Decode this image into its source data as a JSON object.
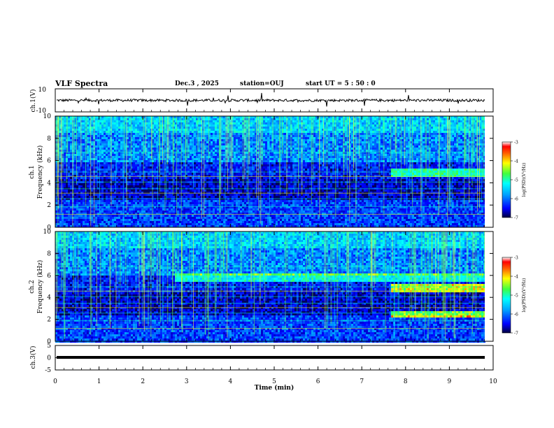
{
  "header": {
    "title": "VLF Spectra",
    "date": "Dec.3  , 2025",
    "station": "station=OUJ",
    "start_ut": "start  UT =  5 : 50 : 0"
  },
  "chart_data": [
    {
      "type": "line",
      "name": "ch1-waveform",
      "ylabel": "ch.1(V)",
      "ylim": [
        -10,
        10
      ],
      "yticks": [
        "10",
        "-10"
      ],
      "xlim": [
        0,
        10
      ],
      "baseline": 0
    },
    {
      "type": "heatmap",
      "name": "ch1-spectrogram",
      "ylabel": "ch.1\nFrequency (kHz)",
      "ylabel_lines": [
        "ch.1",
        "Frequency  (kHz)"
      ],
      "ylim": [
        0,
        10
      ],
      "yticks": [
        "0",
        "2",
        "4",
        "6",
        "8",
        "10"
      ],
      "xlim": [
        0,
        10
      ],
      "colorbar": {
        "label": "log(PSD)(V²/Hz)",
        "range": [
          -7,
          -3
        ],
        "ticks": [
          "-3",
          "-4",
          "-5",
          "-6",
          "-7"
        ]
      }
    },
    {
      "type": "heatmap",
      "name": "ch2-spectrogram",
      "ylabel_lines": [
        "ch.2",
        "Frequency  (kHz)"
      ],
      "ylim": [
        0,
        10
      ],
      "yticks": [
        "0",
        "2",
        "4",
        "6",
        "8",
        "10"
      ],
      "xlim": [
        0,
        10
      ],
      "colorbar": {
        "label": "log(PSD)(V²/Hz)",
        "range": [
          -7,
          -3
        ],
        "ticks": [
          "-3",
          "-4",
          "-5",
          "-6",
          "-7"
        ]
      }
    },
    {
      "type": "line",
      "name": "ch3-waveform",
      "ylabel": "ch.3(V)",
      "ylim": [
        -5,
        5
      ],
      "yticks": [
        "5",
        "0",
        "-5"
      ],
      "xlim": [
        0,
        10
      ],
      "baseline": -1
    }
  ],
  "xaxis": {
    "label": "Time  (min)",
    "ticks": [
      "0",
      "1",
      "2",
      "3",
      "4",
      "5",
      "6",
      "7",
      "8",
      "9",
      "10"
    ]
  }
}
